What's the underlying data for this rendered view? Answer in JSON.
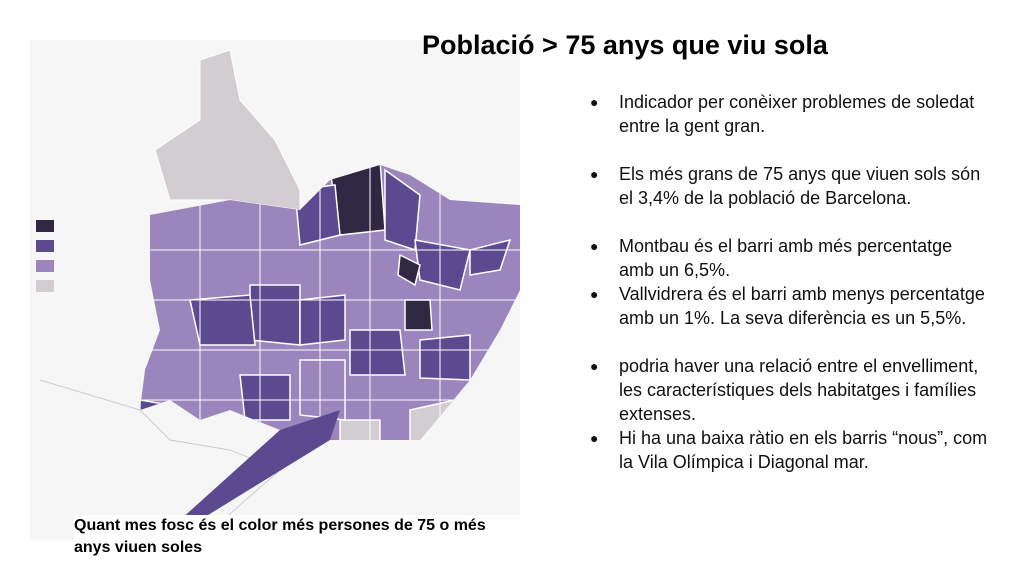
{
  "title": "Població > 75 anys que viu sola",
  "bullets": [
    "Indicador per conèixer problemes de soledat entre la gent gran.",
    "Els més grans de 75 anys que viuen sols són el 3,4% de la població de Barcelona.",
    "Montbau és el barri amb més percentatge amb un 6,5%.",
    "Vallvidrera és el barri amb menys percentatge amb un 1%. La seva diferència es un 5,5%.",
    "podria haver una relació entre el envelliment, les característiques dels habitatges i famílies extenses.",
    "Hi ha una baixa ràtio en els barris “nous”, com la Vila Olímpica i Diagonal mar."
  ],
  "caption": "Quant mes fosc és el color més persones de 75 o més anys viuen soles"
}
